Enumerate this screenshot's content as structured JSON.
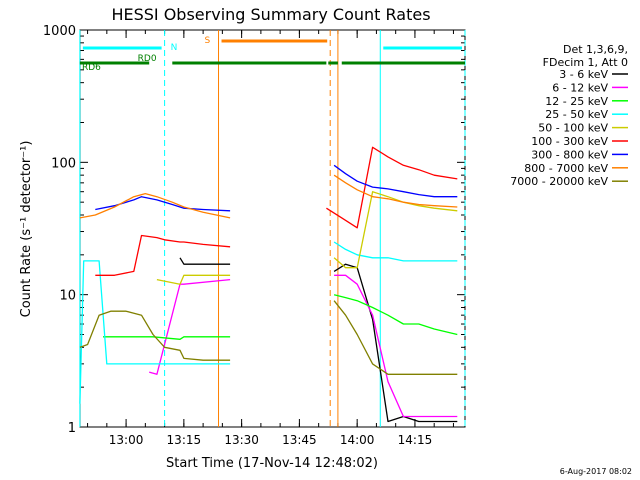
{
  "chart_data": {
    "type": "line",
    "title": "HESSI Observing Summary Count Rates",
    "xlabel": "Start Time (17-Nov-14 12:48:02)",
    "ylabel": "Count Rate (s⁻¹ detector⁻¹)",
    "yscale": "log",
    "ylim": [
      1,
      1000
    ],
    "xlim": [
      "12:48:02",
      "14:28:00"
    ],
    "x_ticks": [
      "13:00",
      "13:15",
      "13:30",
      "13:45",
      "14:00",
      "14:15"
    ],
    "y_ticks": [
      "1",
      "10",
      "100",
      "1000"
    ],
    "legend_header": [
      "Det 1,3,6,9,",
      "FDecim 1, Att 0"
    ],
    "timestamp": "6-Aug-2017 08:02",
    "grid": false,
    "legend_position": "right",
    "series": [
      {
        "name": "3 - 6 keV",
        "color": "#000000",
        "x": [
          "12:48",
          "13:08",
          "13:09",
          "13:14",
          "13:15",
          "13:27",
          "13:48",
          "13:51",
          "13:54",
          "13:57",
          "14:00",
          "14:04",
          "14:08",
          "14:12",
          "14:16",
          "14:20",
          "14:26"
        ],
        "y": [
          null,
          null,
          null,
          19,
          17,
          17,
          null,
          null,
          15,
          17,
          16,
          6.5,
          1.1,
          1.2,
          1.1,
          1.1,
          1.1
        ]
      },
      {
        "name": "6 - 12 keV",
        "color": "#ff00ff",
        "x": [
          "12:48",
          "13:06",
          "13:08",
          "13:14",
          "13:15",
          "13:27",
          "13:48",
          "13:51",
          "13:54",
          "13:57",
          "14:00",
          "14:04",
          "14:08",
          "14:12",
          "14:16",
          "14:20",
          "14:26"
        ],
        "y": [
          null,
          2.6,
          2.5,
          12,
          12,
          13,
          null,
          null,
          14,
          14,
          12,
          7,
          2.2,
          1.2,
          1.2,
          1.2,
          1.2
        ]
      },
      {
        "name": "12 - 25 keV",
        "color": "#00ff00",
        "x": [
          "12:48",
          "12:54",
          "12:56",
          "13:06",
          "13:07",
          "13:14",
          "13:15",
          "13:27",
          "13:48",
          "13:51",
          "13:54",
          "13:57",
          "14:00",
          "14:04",
          "14:08",
          "14:12",
          "14:16",
          "14:20",
          "14:26"
        ],
        "y": [
          null,
          4.8,
          4.8,
          4.8,
          4.8,
          4.6,
          4.8,
          4.8,
          null,
          null,
          10,
          9.5,
          9,
          8,
          7,
          6,
          6,
          5.5,
          5
        ]
      },
      {
        "name": "25 - 50 keV",
        "color": "#00ffff",
        "x": [
          "12:48",
          "12:49",
          "12:53",
          "12:55",
          "13:05",
          "13:08",
          "13:15",
          "13:27",
          "13:48",
          "13:51",
          "13:54",
          "13:57",
          "14:00",
          "14:04",
          "14:08",
          "14:12",
          "14:16",
          "14:20",
          "14:26"
        ],
        "y": [
          1.5,
          18,
          18,
          3,
          3,
          3,
          3,
          3,
          null,
          null,
          25,
          22,
          20,
          19,
          19,
          18,
          18,
          18,
          18
        ]
      },
      {
        "name": "50 - 100 keV",
        "color": "#cccc00",
        "x": [
          "12:48",
          "13:02",
          "13:04",
          "13:08",
          "13:14",
          "13:15",
          "13:27",
          "13:48",
          "13:51",
          "13:54",
          "13:57",
          "14:00",
          "14:04",
          "14:08",
          "14:12",
          "14:16",
          "14:20",
          "14:26"
        ],
        "y": [
          null,
          null,
          null,
          13,
          12,
          14,
          14,
          null,
          null,
          19,
          16,
          16,
          60,
          55,
          50,
          47,
          45,
          43
        ]
      },
      {
        "name": "100 - 300 keV",
        "color": "#ff0000",
        "x": [
          "12:48",
          "12:52",
          "12:57",
          "13:02",
          "13:04",
          "13:08",
          "13:10",
          "13:14",
          "13:15",
          "13:20",
          "13:27",
          "13:48",
          "13:51",
          "13:52",
          "13:56",
          "14:00",
          "14:04",
          "14:08",
          "14:12",
          "14:16",
          "14:20",
          "14:26"
        ],
        "y": [
          null,
          14,
          14,
          15,
          28,
          27,
          26,
          25,
          25,
          24,
          23,
          null,
          null,
          45,
          38,
          32,
          130,
          110,
          95,
          88,
          80,
          75
        ]
      },
      {
        "name": "300 - 800 keV",
        "color": "#0000ff",
        "x": [
          "12:48",
          "12:52",
          "12:57",
          "13:02",
          "13:04",
          "13:08",
          "13:12",
          "13:15",
          "13:20",
          "13:27",
          "13:48",
          "13:51",
          "13:54",
          "13:57",
          "14:00",
          "14:04",
          "14:08",
          "14:12",
          "14:16",
          "14:20",
          "14:26"
        ],
        "y": [
          null,
          44,
          47,
          52,
          55,
          52,
          48,
          45,
          44,
          43,
          null,
          null,
          95,
          82,
          72,
          65,
          63,
          60,
          57,
          55,
          55
        ]
      },
      {
        "name": "800 - 7000 keV",
        "color": "#ff8000",
        "x": [
          "12:48",
          "12:52",
          "12:57",
          "13:02",
          "13:05",
          "13:08",
          "13:12",
          "13:15",
          "13:20",
          "13:27",
          "13:48",
          "13:51",
          "13:54",
          "13:57",
          "14:00",
          "14:04",
          "14:08",
          "14:12",
          "14:16",
          "14:20",
          "14:26"
        ],
        "y": [
          38,
          40,
          46,
          55,
          58,
          55,
          50,
          46,
          42,
          38,
          null,
          null,
          80,
          70,
          62,
          55,
          53,
          50,
          48,
          47,
          46
        ]
      },
      {
        "name": "7000 - 20000 keV",
        "color": "#808000",
        "x": [
          "12:48",
          "12:50",
          "12:53",
          "12:56",
          "13:00",
          "13:04",
          "13:07",
          "13:10",
          "13:14",
          "13:15",
          "13:20",
          "13:27",
          "13:48",
          "13:51",
          "13:54",
          "13:57",
          "14:00",
          "14:04",
          "14:08",
          "14:12",
          "14:16",
          "14:20",
          "14:26"
        ],
        "y": [
          4,
          4.2,
          7,
          7.5,
          7.5,
          7,
          5,
          4,
          3.8,
          3.3,
          3.2,
          3.2,
          null,
          null,
          9,
          7,
          5,
          3,
          2.5,
          2.5,
          2.5,
          2.5,
          2.5
        ]
      }
    ],
    "annotations": {
      "state_bars": [
        {
          "label": "N",
          "color": "#00ffff",
          "from": "12:48",
          "to": "13:10"
        },
        {
          "label": "",
          "color": "#00ffff",
          "from": "14:06",
          "to": "14:28"
        },
        {
          "label": "RD0",
          "color": "#008000",
          "from": "13:06",
          "to": "13:11"
        },
        {
          "label": "RD6",
          "color": "#008000",
          "from": "12:48",
          "to": "14:28"
        },
        {
          "label": "S",
          "color": "#ff8000",
          "from": "13:24",
          "to": "13:53"
        }
      ],
      "vertical_lines": [
        {
          "time": "12:48",
          "color": "#00ffff",
          "style": "solid"
        },
        {
          "time": "13:10",
          "color": "#00ffff",
          "style": "dashed"
        },
        {
          "time": "13:24",
          "color": "#ff8000",
          "style": "solid"
        },
        {
          "time": "13:53",
          "color": "#ff8000",
          "style": "dashed"
        },
        {
          "time": "13:55",
          "color": "#ff8000",
          "style": "solid"
        },
        {
          "time": "14:06",
          "color": "#00ffff",
          "style": "solid"
        },
        {
          "time": "14:28",
          "color": "#00ffff",
          "style": "dashed"
        }
      ]
    }
  }
}
